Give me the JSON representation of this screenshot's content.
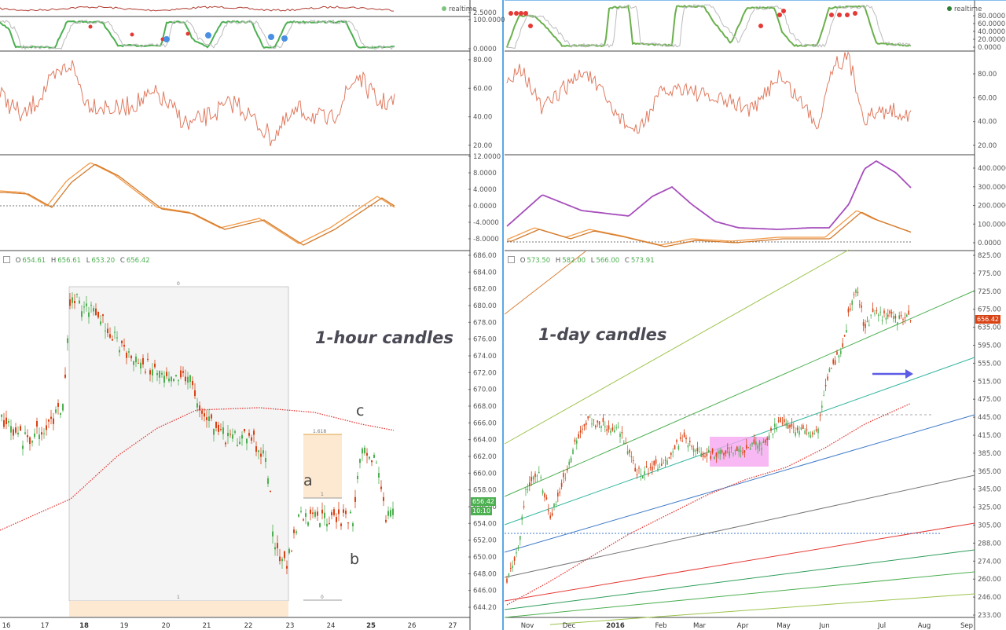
{
  "left_panel": {
    "ohlc": {
      "o_label": "O",
      "o": "654.61",
      "h_label": "H",
      "h": "656.61",
      "l_label": "L",
      "l": "653.20",
      "c_label": "C",
      "c": "656.42"
    },
    "legend": "realtime",
    "annotation": "1-hour candles",
    "wave_labels": {
      "a": "a",
      "b": "b",
      "c": "c"
    },
    "fib_labels": {
      "top": "1.618",
      "mid": "1",
      "bottom": "0",
      "rect_top": "0",
      "rect_bottom": "1"
    },
    "price_tag": "656.42",
    "time_tag": "10:10",
    "price_axis": [
      "686.00",
      "684.00",
      "682.00",
      "680.00",
      "678.00",
      "676.00",
      "674.00",
      "672.00",
      "670.00",
      "668.00",
      "666.00",
      "664.00",
      "662.00",
      "660.00",
      "658.00",
      "656.00",
      "654.00",
      "652.00",
      "650.00",
      "648.00",
      "646.00",
      "644.20"
    ],
    "osc1_axis": [
      "2.5000"
    ],
    "osc2_axis": [
      "100.0000",
      "0.0000"
    ],
    "rsi_axis": [
      "80.00",
      "60.00",
      "40.00",
      "20.00"
    ],
    "macd_axis": [
      "12.0000",
      "8.0000",
      "4.0000",
      "0.0000",
      "-4.0000",
      "-8.0000"
    ],
    "time_axis": [
      {
        "label": "16",
        "x": 8
      },
      {
        "label": "17",
        "x": 57
      },
      {
        "label": "18",
        "x": 107
      },
      {
        "label": "19",
        "x": 158
      },
      {
        "label": "20",
        "x": 211
      },
      {
        "label": "21",
        "x": 263
      },
      {
        "label": "22",
        "x": 316
      },
      {
        "label": "23",
        "x": 369
      },
      {
        "label": "24",
        "x": 421
      },
      {
        "label": "25",
        "x": 472
      },
      {
        "label": "26",
        "x": 524
      },
      {
        "label": "27",
        "x": 576
      }
    ]
  },
  "right_panel": {
    "ohlc": {
      "o_label": "O",
      "o": "573.50",
      "h_label": "H",
      "h": "582.00",
      "l_label": "L",
      "l": "566.00",
      "c_label": "C",
      "c": "573.91"
    },
    "legend": "realtime",
    "annotation": "1-day candles",
    "price_tag": "656.42",
    "price_axis": [
      "825.00",
      "775.00",
      "725.00",
      "675.00",
      "635.00",
      "595.00",
      "555.00",
      "515.00",
      "475.00",
      "445.00",
      "415.00",
      "385.00",
      "365.00",
      "345.00",
      "325.00",
      "305.00",
      "288.00",
      "274.00",
      "260.00",
      "246.00",
      "233.00"
    ],
    "osc2_axis": [
      "80.0000",
      "60.0000",
      "40.0000",
      "20.0000",
      "0.0000"
    ],
    "rsi_axis": [
      "80.00",
      "60.00",
      "40.00",
      "20.00"
    ],
    "macd_axis": [
      "400.0000",
      "300.0000",
      "200.0000",
      "100.0000",
      "0.0000"
    ],
    "time_axis": [
      {
        "label": "Nov",
        "x": 671
      },
      {
        "label": "Dec",
        "x": 724
      },
      {
        "label": "2016",
        "x": 783
      },
      {
        "label": "Feb",
        "x": 841
      },
      {
        "label": "Mar",
        "x": 890
      },
      {
        "label": "Apr",
        "x": 945
      },
      {
        "label": "May",
        "x": 997
      },
      {
        "label": "Jun",
        "x": 1049
      },
      {
        "label": "Jul",
        "x": 1122
      },
      {
        "label": "Aug",
        "x": 1176
      },
      {
        "label": "Sep",
        "x": 1230
      }
    ]
  },
  "colors": {
    "up": "#4caf50",
    "down": "#d84315",
    "ma_red": "#e53935",
    "rsi": "#e07a5f",
    "macd_orange": "#f39c4a",
    "macd_purple": "#a64dbc",
    "stoch_green": "#4caf50",
    "fib_fill": "#fde9d2",
    "pink_box": "#f5a6f0",
    "arrow": "#5b5be6",
    "accent_line": "#42a5f5"
  }
}
